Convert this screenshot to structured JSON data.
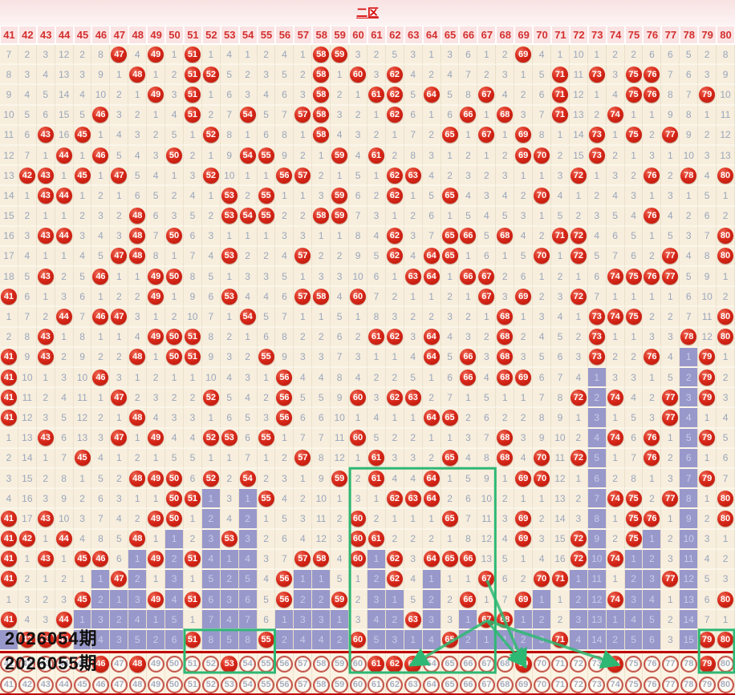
{
  "title": "二区",
  "periods": {
    "prev_label": "2026054期",
    "next_label": "2026055期"
  },
  "chart_data": {
    "type": "table",
    "title": "二区",
    "columns": [
      41,
      42,
      43,
      44,
      45,
      46,
      47,
      48,
      49,
      50,
      51,
      52,
      53,
      54,
      55,
      56,
      57,
      58,
      59,
      60,
      61,
      62,
      63,
      64,
      65,
      66,
      67,
      68,
      69,
      70,
      71,
      72,
      73,
      74,
      75,
      76,
      77,
      78,
      79,
      80
    ],
    "cell_legend": {
      "C": "drawn number shown as red ball",
      "P<n>": "miss count n on purple (current miss streak)",
      "<n>": "miss count"
    },
    "rows": [
      [
        "7",
        "2",
        "3",
        "12",
        "2",
        "8",
        "C",
        "4",
        "C",
        "1",
        "C",
        "1",
        "4",
        "1",
        "2",
        "4",
        "1",
        "C",
        "C",
        "3",
        "2",
        "5",
        "3",
        "1",
        "3",
        "6",
        "1",
        "2",
        "C",
        "4",
        "1",
        "10",
        "1",
        "2",
        "2",
        "6",
        "6",
        "5",
        "2",
        "8"
      ],
      [
        "8",
        "3",
        "4",
        "13",
        "3",
        "9",
        "1",
        "C",
        "1",
        "2",
        "C",
        "C",
        "5",
        "2",
        "3",
        "5",
        "2",
        "C",
        "1",
        "C",
        "3",
        "C",
        "4",
        "2",
        "4",
        "7",
        "2",
        "3",
        "1",
        "5",
        "C",
        "11",
        "C",
        "3",
        "C",
        "C",
        "7",
        "6",
        "3",
        "9"
      ],
      [
        "9",
        "4",
        "5",
        "14",
        "4",
        "10",
        "2",
        "1",
        "C",
        "3",
        "C",
        "1",
        "6",
        "3",
        "4",
        "6",
        "3",
        "C",
        "2",
        "1",
        "C",
        "C",
        "5",
        "C",
        "5",
        "8",
        "C",
        "4",
        "2",
        "6",
        "C",
        "12",
        "1",
        "4",
        "C",
        "C",
        "8",
        "7",
        "C",
        "10"
      ],
      [
        "10",
        "5",
        "6",
        "15",
        "5",
        "C",
        "3",
        "2",
        "1",
        "4",
        "C",
        "2",
        "7",
        "C",
        "5",
        "7",
        "C",
        "C",
        "3",
        "2",
        "1",
        "C",
        "6",
        "1",
        "6",
        "C",
        "1",
        "C",
        "3",
        "7",
        "C",
        "13",
        "2",
        "C",
        "1",
        "1",
        "9",
        "8",
        "1",
        "11"
      ],
      [
        "11",
        "6",
        "C",
        "16",
        "C",
        "1",
        "4",
        "3",
        "2",
        "5",
        "1",
        "C",
        "8",
        "1",
        "6",
        "8",
        "1",
        "C",
        "4",
        "3",
        "2",
        "1",
        "7",
        "2",
        "C",
        "1",
        "C",
        "1",
        "C",
        "8",
        "1",
        "14",
        "C",
        "1",
        "C",
        "2",
        "C",
        "9",
        "2",
        "12"
      ],
      [
        "12",
        "7",
        "1",
        "C",
        "1",
        "C",
        "5",
        "4",
        "3",
        "C",
        "2",
        "1",
        "9",
        "C",
        "C",
        "9",
        "2",
        "1",
        "C",
        "4",
        "C",
        "2",
        "8",
        "3",
        "1",
        "2",
        "1",
        "2",
        "C",
        "C",
        "2",
        "15",
        "C",
        "2",
        "1",
        "3",
        "1",
        "10",
        "3",
        "13"
      ],
      [
        "13",
        "C",
        "C",
        "1",
        "C",
        "1",
        "C",
        "5",
        "4",
        "1",
        "3",
        "C",
        "10",
        "1",
        "1",
        "C",
        "C",
        "2",
        "1",
        "5",
        "1",
        "C",
        "C",
        "4",
        "2",
        "3",
        "2",
        "3",
        "1",
        "1",
        "3",
        "C",
        "1",
        "3",
        "2",
        "C",
        "2",
        "C",
        "4",
        "C"
      ],
      [
        "14",
        "1",
        "C",
        "C",
        "1",
        "2",
        "1",
        "6",
        "5",
        "2",
        "4",
        "1",
        "C",
        "2",
        "C",
        "1",
        "1",
        "3",
        "C",
        "6",
        "2",
        "C",
        "1",
        "5",
        "C",
        "4",
        "3",
        "4",
        "2",
        "C",
        "4",
        "1",
        "2",
        "4",
        "3",
        "1",
        "3",
        "1",
        "5",
        "1"
      ],
      [
        "15",
        "2",
        "1",
        "1",
        "2",
        "3",
        "2",
        "C",
        "6",
        "3",
        "5",
        "2",
        "C",
        "C",
        "C",
        "2",
        "2",
        "C",
        "C",
        "7",
        "3",
        "1",
        "2",
        "6",
        "1",
        "5",
        "4",
        "5",
        "3",
        "1",
        "5",
        "2",
        "3",
        "5",
        "4",
        "C",
        "4",
        "2",
        "6",
        "2"
      ],
      [
        "16",
        "3",
        "C",
        "C",
        "3",
        "4",
        "3",
        "C",
        "7",
        "C",
        "6",
        "3",
        "1",
        "1",
        "1",
        "3",
        "3",
        "1",
        "1",
        "8",
        "4",
        "C",
        "3",
        "7",
        "C",
        "C",
        "5",
        "C",
        "4",
        "2",
        "C",
        "C",
        "4",
        "6",
        "5",
        "1",
        "5",
        "3",
        "7",
        "C"
      ],
      [
        "17",
        "4",
        "1",
        "1",
        "4",
        "5",
        "C",
        "C",
        "8",
        "1",
        "7",
        "4",
        "C",
        "2",
        "2",
        "4",
        "C",
        "2",
        "2",
        "9",
        "5",
        "C",
        "4",
        "C",
        "C",
        "1",
        "6",
        "1",
        "5",
        "C",
        "1",
        "C",
        "5",
        "7",
        "6",
        "2",
        "C",
        "4",
        "8",
        "C"
      ],
      [
        "18",
        "5",
        "C",
        "2",
        "5",
        "C",
        "1",
        "1",
        "C",
        "C",
        "8",
        "5",
        "1",
        "3",
        "3",
        "5",
        "1",
        "3",
        "3",
        "10",
        "6",
        "1",
        "C",
        "C",
        "1",
        "C",
        "C",
        "2",
        "6",
        "1",
        "2",
        "1",
        "6",
        "C",
        "C",
        "C",
        "C",
        "5",
        "9",
        "1"
      ],
      [
        "C",
        "6",
        "1",
        "3",
        "6",
        "1",
        "2",
        "2",
        "C",
        "1",
        "9",
        "6",
        "C",
        "4",
        "4",
        "6",
        "C",
        "C",
        "4",
        "C",
        "7",
        "2",
        "1",
        "1",
        "2",
        "1",
        "C",
        "3",
        "C",
        "2",
        "3",
        "C",
        "7",
        "1",
        "1",
        "1",
        "1",
        "6",
        "10",
        "2"
      ],
      [
        "1",
        "7",
        "2",
        "C",
        "7",
        "C",
        "C",
        "3",
        "1",
        "2",
        "10",
        "7",
        "1",
        "C",
        "5",
        "7",
        "1",
        "1",
        "5",
        "1",
        "8",
        "3",
        "2",
        "2",
        "3",
        "2",
        "1",
        "C",
        "1",
        "3",
        "4",
        "1",
        "C",
        "C",
        "C",
        "2",
        "2",
        "7",
        "11",
        "C"
      ],
      [
        "2",
        "8",
        "C",
        "1",
        "8",
        "1",
        "1",
        "4",
        "C",
        "C",
        "C",
        "8",
        "2",
        "1",
        "6",
        "8",
        "2",
        "2",
        "6",
        "2",
        "C",
        "C",
        "3",
        "C",
        "4",
        "3",
        "2",
        "C",
        "2",
        "4",
        "5",
        "2",
        "C",
        "1",
        "1",
        "3",
        "3",
        "C",
        "12",
        "C"
      ],
      [
        "C",
        "9",
        "C",
        "2",
        "9",
        "2",
        "2",
        "C",
        "1",
        "C",
        "C",
        "9",
        "3",
        "2",
        "C",
        "9",
        "3",
        "3",
        "7",
        "3",
        "1",
        "1",
        "4",
        "C",
        "5",
        "C",
        "3",
        "C",
        "3",
        "5",
        "6",
        "3",
        "C",
        "2",
        "2",
        "C",
        "4",
        "P1",
        "C",
        "1"
      ],
      [
        "C",
        "10",
        "1",
        "3",
        "10",
        "C",
        "3",
        "1",
        "2",
        "1",
        "1",
        "10",
        "4",
        "3",
        "1",
        "C",
        "4",
        "4",
        "8",
        "4",
        "2",
        "2",
        "5",
        "1",
        "6",
        "C",
        "4",
        "C",
        "C",
        "6",
        "7",
        "4",
        "P1",
        "3",
        "3",
        "1",
        "5",
        "P2",
        "C",
        "2"
      ],
      [
        "C",
        "11",
        "2",
        "4",
        "11",
        "1",
        "C",
        "2",
        "3",
        "2",
        "2",
        "C",
        "5",
        "4",
        "2",
        "C",
        "5",
        "5",
        "9",
        "C",
        "3",
        "C",
        "C",
        "2",
        "7",
        "1",
        "5",
        "1",
        "1",
        "7",
        "8",
        "C",
        "P2",
        "C",
        "4",
        "2",
        "C",
        "P3",
        "C",
        "3"
      ],
      [
        "C",
        "12",
        "3",
        "5",
        "12",
        "2",
        "1",
        "C",
        "4",
        "3",
        "3",
        "1",
        "6",
        "5",
        "3",
        "C",
        "6",
        "6",
        "10",
        "1",
        "4",
        "1",
        "1",
        "C",
        "C",
        "2",
        "6",
        "2",
        "2",
        "8",
        "9",
        "1",
        "P3",
        "1",
        "5",
        "3",
        "C",
        "P4",
        "1",
        "4"
      ],
      [
        "1",
        "13",
        "C",
        "6",
        "13",
        "3",
        "C",
        "1",
        "C",
        "4",
        "4",
        "C",
        "C",
        "6",
        "C",
        "1",
        "7",
        "7",
        "11",
        "C",
        "5",
        "2",
        "2",
        "1",
        "1",
        "3",
        "7",
        "C",
        "3",
        "9",
        "10",
        "2",
        "P4",
        "C",
        "6",
        "C",
        "1",
        "P5",
        "C",
        "5"
      ],
      [
        "2",
        "14",
        "1",
        "7",
        "C",
        "4",
        "1",
        "2",
        "1",
        "5",
        "5",
        "1",
        "1",
        "7",
        "1",
        "2",
        "C",
        "8",
        "12",
        "1",
        "C",
        "3",
        "3",
        "2",
        "C",
        "4",
        "8",
        "C",
        "4",
        "C",
        "11",
        "C",
        "P5",
        "1",
        "7",
        "C",
        "2",
        "P6",
        "1",
        "6"
      ],
      [
        "3",
        "15",
        "2",
        "8",
        "1",
        "5",
        "2",
        "C",
        "C",
        "C",
        "6",
        "C",
        "2",
        "C",
        "2",
        "3",
        "1",
        "9",
        "C",
        "2",
        "C",
        "4",
        "4",
        "C",
        "1",
        "5",
        "9",
        "1",
        "C",
        "C",
        "12",
        "1",
        "P6",
        "2",
        "8",
        "1",
        "3",
        "P7",
        "C",
        "7"
      ],
      [
        "4",
        "16",
        "3",
        "9",
        "2",
        "6",
        "3",
        "1",
        "1",
        "C",
        "C",
        "P1",
        "3",
        "P1",
        "C",
        "4",
        "2",
        "10",
        "1",
        "3",
        "1",
        "C",
        "C",
        "C",
        "2",
        "6",
        "10",
        "2",
        "1",
        "1",
        "13",
        "2",
        "P7",
        "C",
        "C",
        "2",
        "C",
        "P8",
        "1",
        "C"
      ],
      [
        "C",
        "17",
        "C",
        "10",
        "3",
        "7",
        "4",
        "2",
        "C",
        "C",
        "1",
        "P2",
        "4",
        "P2",
        "1",
        "5",
        "3",
        "11",
        "2",
        "C",
        "2",
        "1",
        "1",
        "1",
        "C",
        "7",
        "11",
        "3",
        "C",
        "2",
        "14",
        "3",
        "P8",
        "1",
        "C",
        "C",
        "1",
        "P9",
        "2",
        "C"
      ],
      [
        "C",
        "C",
        "1",
        "C",
        "4",
        "8",
        "5",
        "C",
        "1",
        "P1",
        "2",
        "P3",
        "C",
        "P3",
        "2",
        "6",
        "4",
        "12",
        "3",
        "C",
        "C",
        "2",
        "2",
        "2",
        "1",
        "8",
        "12",
        "4",
        "C",
        "3",
        "15",
        "C",
        "P9",
        "2",
        "C",
        "P1",
        "2",
        "P10",
        "3",
        "1"
      ],
      [
        "C",
        "1",
        "C",
        "1",
        "C",
        "C",
        "6",
        "P1",
        "C",
        "P2",
        "C",
        "P4",
        "P1",
        "P4",
        "3",
        "7",
        "C",
        "C",
        "4",
        "C",
        "P1",
        "C",
        "3",
        "C",
        "C",
        "C",
        "13",
        "5",
        "1",
        "4",
        "16",
        "C",
        "P10",
        "C",
        "P1",
        "P2",
        "3",
        "P11",
        "4",
        "2"
      ],
      [
        "C",
        "2",
        "1",
        "2",
        "1",
        "P1",
        "C",
        "P2",
        "1",
        "P3",
        "1",
        "P5",
        "P2",
        "P5",
        "4",
        "C",
        "P1",
        "P1",
        "5",
        "1",
        "P2",
        "C",
        "4",
        "P1",
        "1",
        "1",
        "C",
        "6",
        "2",
        "C",
        "C",
        "P1",
        "P11",
        "1",
        "P2",
        "P3",
        "C",
        "P12",
        "5",
        "3"
      ],
      [
        "1",
        "3",
        "2",
        "3",
        "C",
        "P2",
        "P1",
        "P3",
        "C",
        "P4",
        "C",
        "P6",
        "P3",
        "P6",
        "5",
        "C",
        "P2",
        "P2",
        "C",
        "2",
        "P3",
        "P1",
        "5",
        "P2",
        "2",
        "C",
        "1",
        "7",
        "C",
        "P1",
        "1",
        "P2",
        "P12",
        "C",
        "P3",
        "P4",
        "1",
        "P13",
        "6",
        "C"
      ],
      [
        "C",
        "4",
        "3",
        "C",
        "P1",
        "P3",
        "P2",
        "P4",
        "P1",
        "P5",
        "1",
        "P7",
        "P4",
        "P7",
        "6",
        "P1",
        "P3",
        "P3",
        "P1",
        "3",
        "P4",
        "P2",
        "C",
        "P3",
        "3",
        "P1",
        "C",
        "C",
        "P1",
        "P2",
        "2",
        "P3",
        "P13",
        "P1",
        "P4",
        "P5",
        "2",
        "P14",
        "7",
        "1"
      ],
      [
        "P1",
        "C",
        "C",
        "C",
        "P2",
        "P4",
        "P3",
        "P5",
        "P2",
        "P6",
        "C",
        "P8",
        "P5",
        "P8",
        "C",
        "P2",
        "P4",
        "P4",
        "P2",
        "C",
        "P5",
        "P3",
        "P1",
        "P4",
        "C",
        "P2",
        "P1",
        "P1",
        "P2",
        "P3",
        "C",
        "P4",
        "P14",
        "P2",
        "P5",
        "P6",
        "3",
        "P15",
        "C",
        "C"
      ]
    ],
    "next_period_drawn": [
      46,
      48,
      53,
      61,
      62,
      63,
      69,
      74,
      79
    ],
    "annotations": {
      "boxes": [
        {
          "cols": [
            51,
            55
          ],
          "rows": [
            30,
            31
          ]
        },
        {
          "cols": [
            60,
            67
          ],
          "rows": [
            22,
            31
          ]
        },
        {
          "cols": [
            79,
            80
          ],
          "rows": [
            30,
            31
          ]
        }
      ],
      "lines": [
        {
          "from": {
            "col": 67,
            "row": 27
          },
          "to": {
            "col": 69,
            "row": 31
          }
        },
        {
          "from": {
            "col": 67,
            "row": 29
          },
          "to": {
            "col": 63,
            "row": 31
          }
        },
        {
          "from": {
            "col": 67,
            "row": 29
          },
          "to": {
            "col": 69,
            "row": 31
          }
        },
        {
          "from": {
            "col": 67,
            "row": 29
          },
          "to": {
            "col": 74,
            "row": 31
          }
        }
      ]
    },
    "colors": {
      "ball_red": "#c62317",
      "purple": "#9898cb",
      "miss_text": "#9aa6bc",
      "green": "#2db873",
      "header_text": "#d43030",
      "separator_red": "#c00606",
      "banner_pink": "#f8e2e2",
      "cell_beige": "#f7eedd"
    }
  }
}
